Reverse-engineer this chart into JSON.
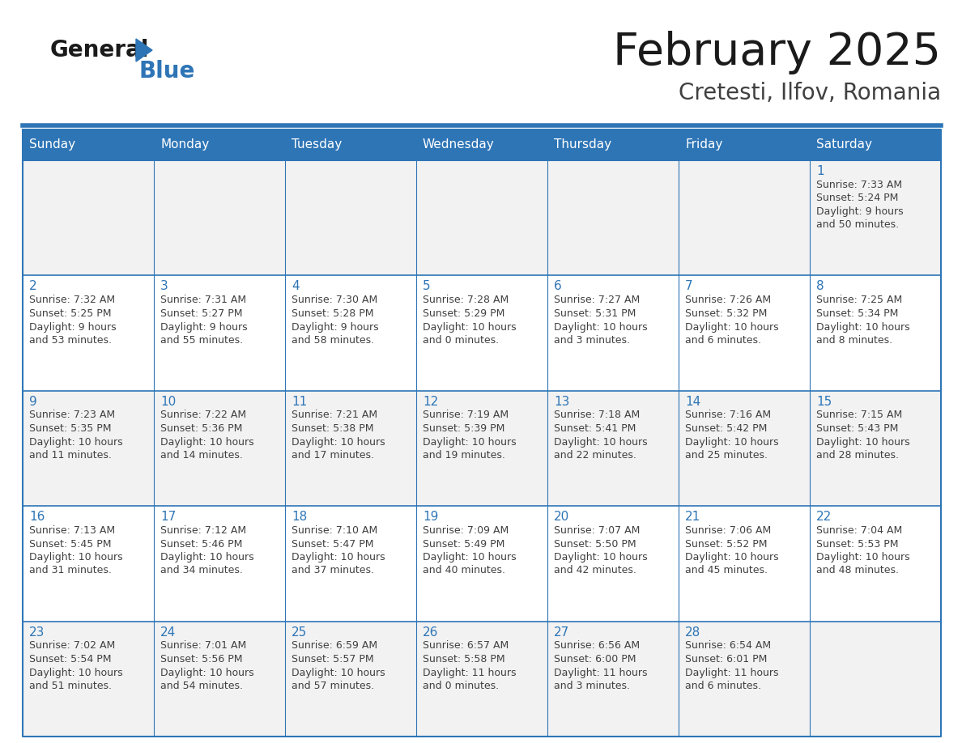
{
  "title": "February 2025",
  "subtitle": "Cretesti, Ilfov, Romania",
  "days_of_week": [
    "Sunday",
    "Monday",
    "Tuesday",
    "Wednesday",
    "Thursday",
    "Friday",
    "Saturday"
  ],
  "header_bg": "#2E75B6",
  "header_text": "#FFFFFF",
  "cell_bg_row0": "#F2F2F2",
  "cell_bg_row1": "#FFFFFF",
  "cell_bg_row2": "#F2F2F2",
  "cell_bg_row3": "#FFFFFF",
  "cell_bg_row4": "#F2F2F2",
  "border_color": "#2E75B6",
  "day_num_color": "#2E75B6",
  "cell_text_color": "#404040",
  "title_color": "#1a1a1a",
  "subtitle_color": "#404040",
  "logo_general_color": "#1a1a1a",
  "logo_blue_color": "#2E75B6",
  "calendar_data": [
    {
      "day": 1,
      "col": 6,
      "row": 0,
      "sunrise": "7:33 AM",
      "sunset": "5:24 PM",
      "daylight_line1": "Daylight: 9 hours",
      "daylight_line2": "and 50 minutes."
    },
    {
      "day": 2,
      "col": 0,
      "row": 1,
      "sunrise": "7:32 AM",
      "sunset": "5:25 PM",
      "daylight_line1": "Daylight: 9 hours",
      "daylight_line2": "and 53 minutes."
    },
    {
      "day": 3,
      "col": 1,
      "row": 1,
      "sunrise": "7:31 AM",
      "sunset": "5:27 PM",
      "daylight_line1": "Daylight: 9 hours",
      "daylight_line2": "and 55 minutes."
    },
    {
      "day": 4,
      "col": 2,
      "row": 1,
      "sunrise": "7:30 AM",
      "sunset": "5:28 PM",
      "daylight_line1": "Daylight: 9 hours",
      "daylight_line2": "and 58 minutes."
    },
    {
      "day": 5,
      "col": 3,
      "row": 1,
      "sunrise": "7:28 AM",
      "sunset": "5:29 PM",
      "daylight_line1": "Daylight: 10 hours",
      "daylight_line2": "and 0 minutes."
    },
    {
      "day": 6,
      "col": 4,
      "row": 1,
      "sunrise": "7:27 AM",
      "sunset": "5:31 PM",
      "daylight_line1": "Daylight: 10 hours",
      "daylight_line2": "and 3 minutes."
    },
    {
      "day": 7,
      "col": 5,
      "row": 1,
      "sunrise": "7:26 AM",
      "sunset": "5:32 PM",
      "daylight_line1": "Daylight: 10 hours",
      "daylight_line2": "and 6 minutes."
    },
    {
      "day": 8,
      "col": 6,
      "row": 1,
      "sunrise": "7:25 AM",
      "sunset": "5:34 PM",
      "daylight_line1": "Daylight: 10 hours",
      "daylight_line2": "and 8 minutes."
    },
    {
      "day": 9,
      "col": 0,
      "row": 2,
      "sunrise": "7:23 AM",
      "sunset": "5:35 PM",
      "daylight_line1": "Daylight: 10 hours",
      "daylight_line2": "and 11 minutes."
    },
    {
      "day": 10,
      "col": 1,
      "row": 2,
      "sunrise": "7:22 AM",
      "sunset": "5:36 PM",
      "daylight_line1": "Daylight: 10 hours",
      "daylight_line2": "and 14 minutes."
    },
    {
      "day": 11,
      "col": 2,
      "row": 2,
      "sunrise": "7:21 AM",
      "sunset": "5:38 PM",
      "daylight_line1": "Daylight: 10 hours",
      "daylight_line2": "and 17 minutes."
    },
    {
      "day": 12,
      "col": 3,
      "row": 2,
      "sunrise": "7:19 AM",
      "sunset": "5:39 PM",
      "daylight_line1": "Daylight: 10 hours",
      "daylight_line2": "and 19 minutes."
    },
    {
      "day": 13,
      "col": 4,
      "row": 2,
      "sunrise": "7:18 AM",
      "sunset": "5:41 PM",
      "daylight_line1": "Daylight: 10 hours",
      "daylight_line2": "and 22 minutes."
    },
    {
      "day": 14,
      "col": 5,
      "row": 2,
      "sunrise": "7:16 AM",
      "sunset": "5:42 PM",
      "daylight_line1": "Daylight: 10 hours",
      "daylight_line2": "and 25 minutes."
    },
    {
      "day": 15,
      "col": 6,
      "row": 2,
      "sunrise": "7:15 AM",
      "sunset": "5:43 PM",
      "daylight_line1": "Daylight: 10 hours",
      "daylight_line2": "and 28 minutes."
    },
    {
      "day": 16,
      "col": 0,
      "row": 3,
      "sunrise": "7:13 AM",
      "sunset": "5:45 PM",
      "daylight_line1": "Daylight: 10 hours",
      "daylight_line2": "and 31 minutes."
    },
    {
      "day": 17,
      "col": 1,
      "row": 3,
      "sunrise": "7:12 AM",
      "sunset": "5:46 PM",
      "daylight_line1": "Daylight: 10 hours",
      "daylight_line2": "and 34 minutes."
    },
    {
      "day": 18,
      "col": 2,
      "row": 3,
      "sunrise": "7:10 AM",
      "sunset": "5:47 PM",
      "daylight_line1": "Daylight: 10 hours",
      "daylight_line2": "and 37 minutes."
    },
    {
      "day": 19,
      "col": 3,
      "row": 3,
      "sunrise": "7:09 AM",
      "sunset": "5:49 PM",
      "daylight_line1": "Daylight: 10 hours",
      "daylight_line2": "and 40 minutes."
    },
    {
      "day": 20,
      "col": 4,
      "row": 3,
      "sunrise": "7:07 AM",
      "sunset": "5:50 PM",
      "daylight_line1": "Daylight: 10 hours",
      "daylight_line2": "and 42 minutes."
    },
    {
      "day": 21,
      "col": 5,
      "row": 3,
      "sunrise": "7:06 AM",
      "sunset": "5:52 PM",
      "daylight_line1": "Daylight: 10 hours",
      "daylight_line2": "and 45 minutes."
    },
    {
      "day": 22,
      "col": 6,
      "row": 3,
      "sunrise": "7:04 AM",
      "sunset": "5:53 PM",
      "daylight_line1": "Daylight: 10 hours",
      "daylight_line2": "and 48 minutes."
    },
    {
      "day": 23,
      "col": 0,
      "row": 4,
      "sunrise": "7:02 AM",
      "sunset": "5:54 PM",
      "daylight_line1": "Daylight: 10 hours",
      "daylight_line2": "and 51 minutes."
    },
    {
      "day": 24,
      "col": 1,
      "row": 4,
      "sunrise": "7:01 AM",
      "sunset": "5:56 PM",
      "daylight_line1": "Daylight: 10 hours",
      "daylight_line2": "and 54 minutes."
    },
    {
      "day": 25,
      "col": 2,
      "row": 4,
      "sunrise": "6:59 AM",
      "sunset": "5:57 PM",
      "daylight_line1": "Daylight: 10 hours",
      "daylight_line2": "and 57 minutes."
    },
    {
      "day": 26,
      "col": 3,
      "row": 4,
      "sunrise": "6:57 AM",
      "sunset": "5:58 PM",
      "daylight_line1": "Daylight: 11 hours",
      "daylight_line2": "and 0 minutes."
    },
    {
      "day": 27,
      "col": 4,
      "row": 4,
      "sunrise": "6:56 AM",
      "sunset": "6:00 PM",
      "daylight_line1": "Daylight: 11 hours",
      "daylight_line2": "and 3 minutes."
    },
    {
      "day": 28,
      "col": 5,
      "row": 4,
      "sunrise": "6:54 AM",
      "sunset": "6:01 PM",
      "daylight_line1": "Daylight: 11 hours",
      "daylight_line2": "and 6 minutes."
    }
  ],
  "num_rows": 5,
  "num_cols": 7
}
